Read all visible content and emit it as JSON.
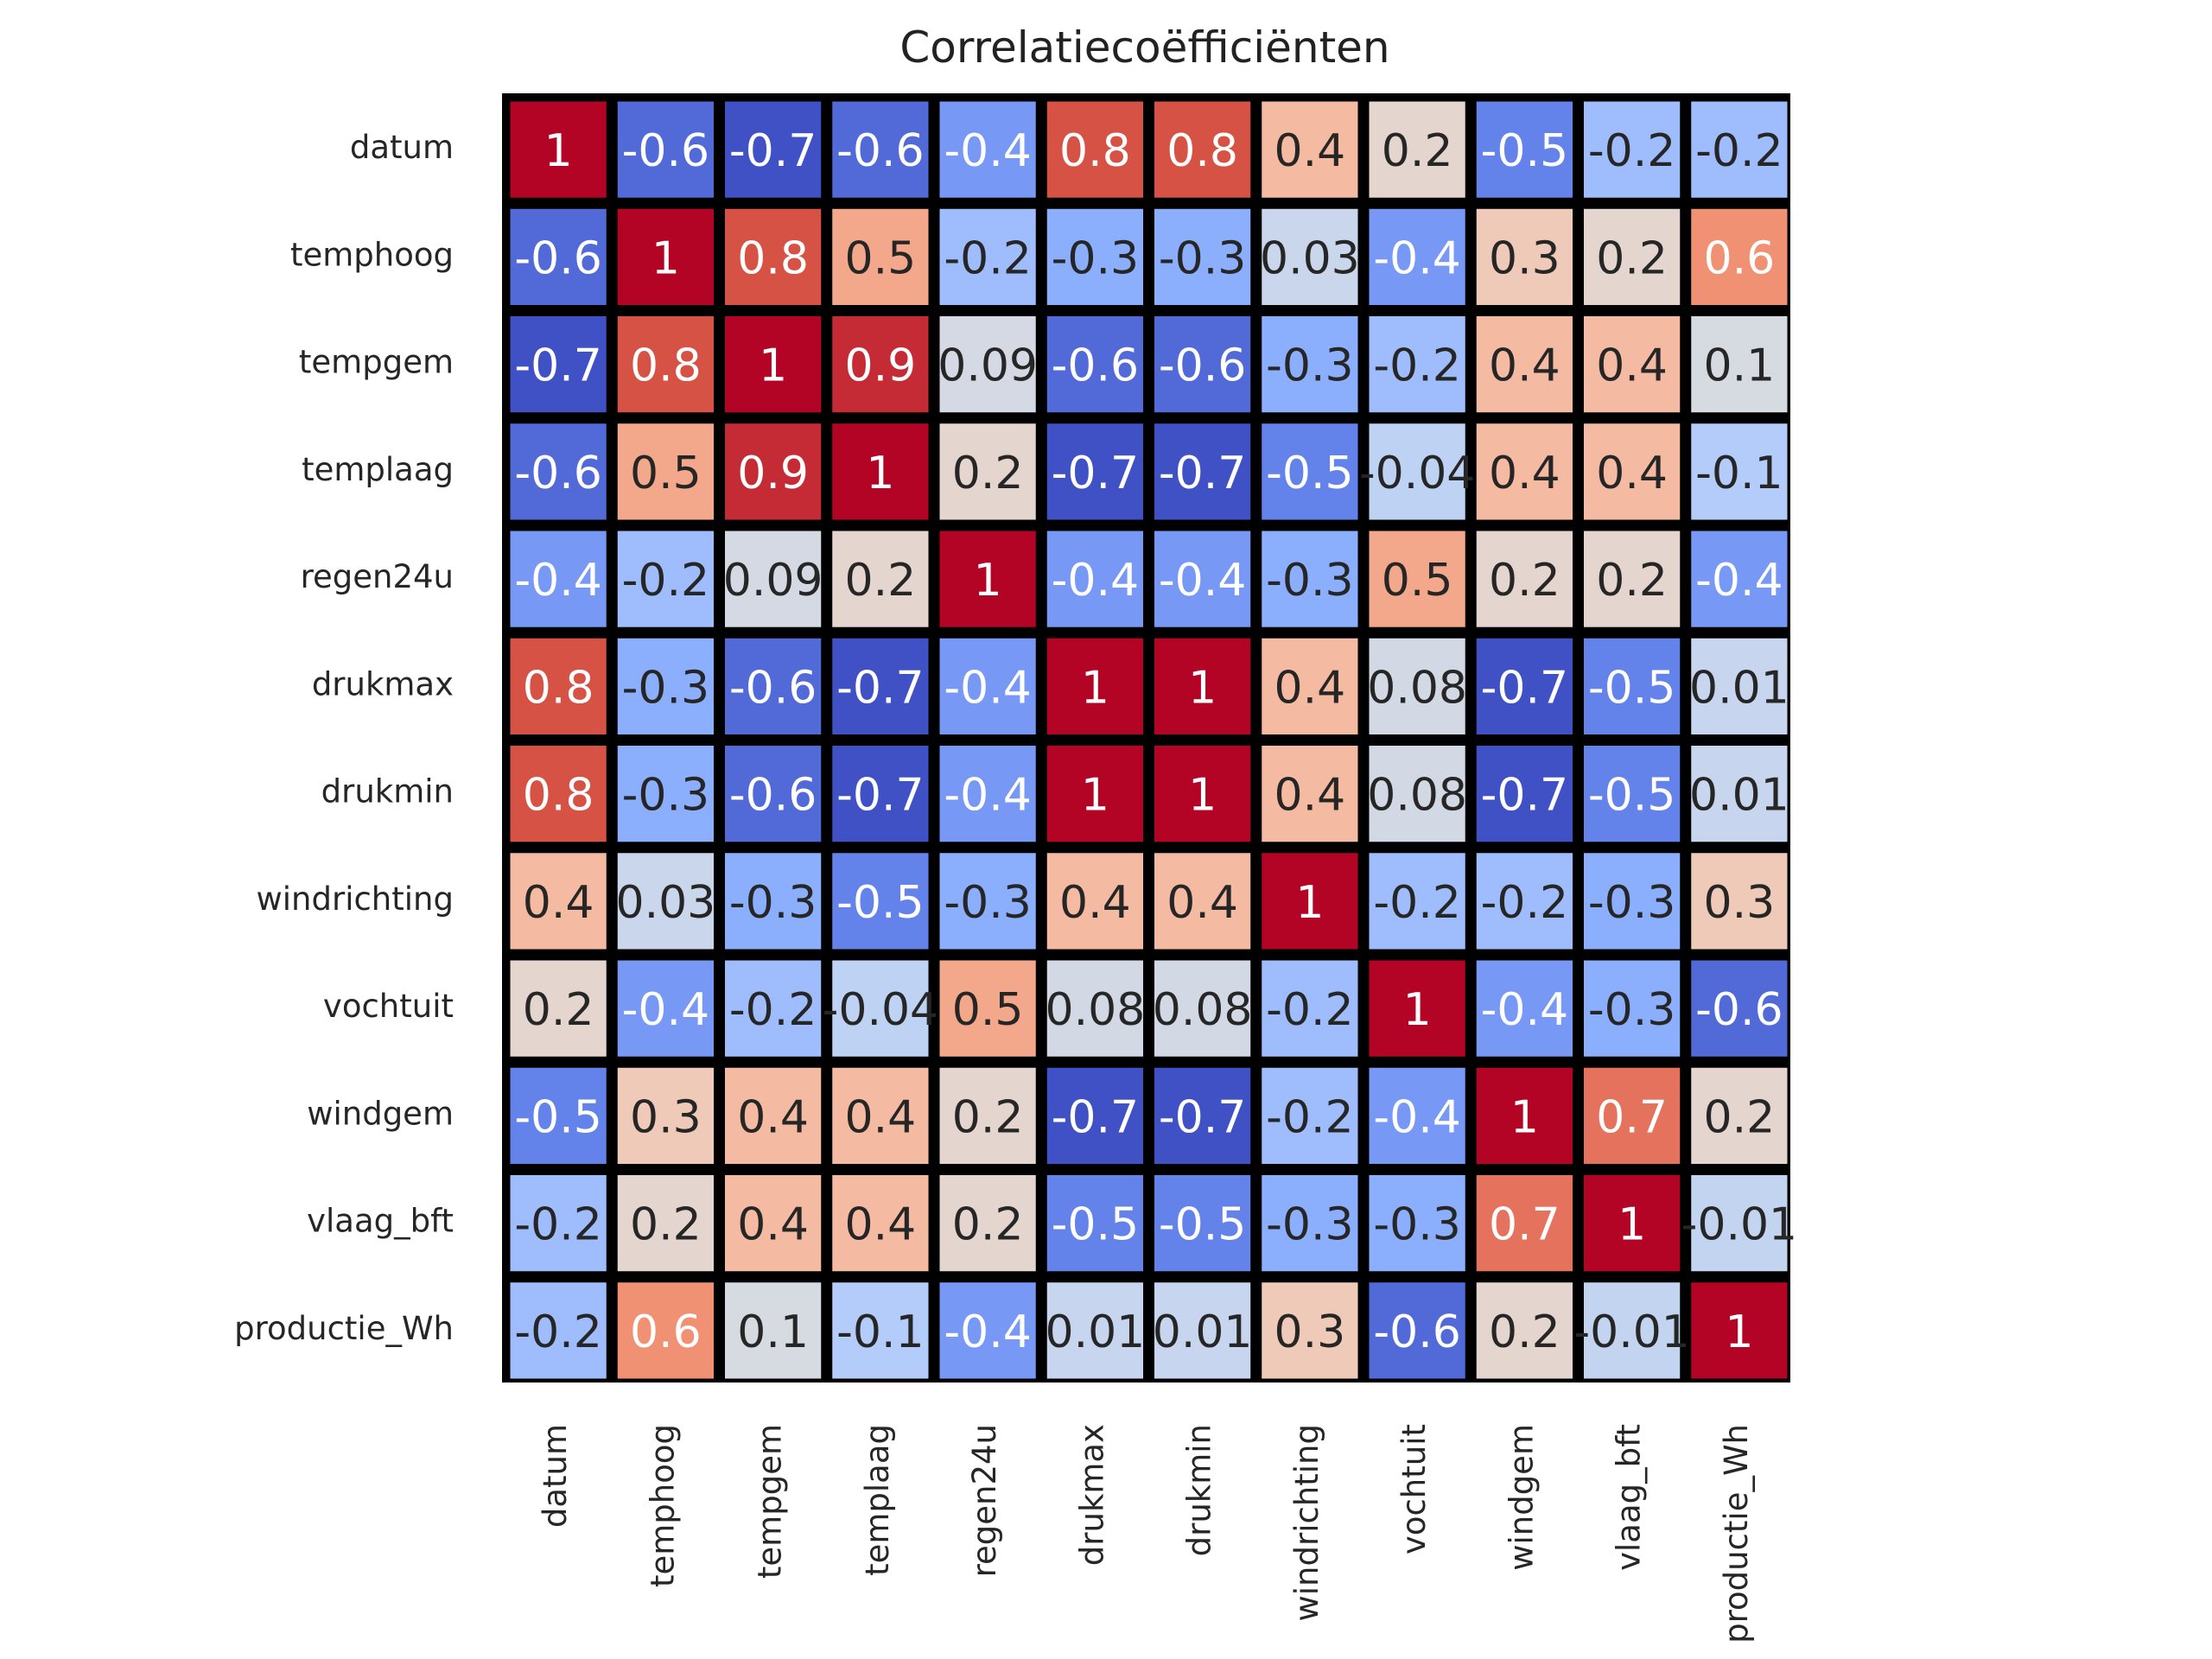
{
  "chart_data": {
    "type": "heatmap",
    "title": "Correlatiecoëfficiënten",
    "colormap": "coolwarm",
    "labels": [
      "datum",
      "temphoog",
      "tempgem",
      "templaag",
      "regen24u",
      "drukmax",
      "drukmin",
      "windrichting",
      "vochtuit",
      "windgem",
      "vlaag_bft",
      "productie_Wh"
    ],
    "values": [
      [
        1,
        -0.6,
        -0.7,
        -0.6,
        -0.4,
        0.8,
        0.8,
        0.4,
        0.2,
        -0.5,
        -0.2,
        -0.2
      ],
      [
        -0.6,
        1,
        0.8,
        0.5,
        -0.2,
        -0.3,
        -0.3,
        0.03,
        -0.4,
        0.3,
        0.2,
        0.6
      ],
      [
        -0.7,
        0.8,
        1,
        0.9,
        0.09,
        -0.6,
        -0.6,
        -0.3,
        -0.2,
        0.4,
        0.4,
        0.1
      ],
      [
        -0.6,
        0.5,
        0.9,
        1,
        0.2,
        -0.7,
        -0.7,
        -0.5,
        -0.04,
        0.4,
        0.4,
        -0.1
      ],
      [
        -0.4,
        -0.2,
        0.09,
        0.2,
        1,
        -0.4,
        -0.4,
        -0.3,
        0.5,
        0.2,
        0.2,
        -0.4
      ],
      [
        0.8,
        -0.3,
        -0.6,
        -0.7,
        -0.4,
        1,
        1,
        0.4,
        0.08,
        -0.7,
        -0.5,
        0.01
      ],
      [
        0.8,
        -0.3,
        -0.6,
        -0.7,
        -0.4,
        1,
        1,
        0.4,
        0.08,
        -0.7,
        -0.5,
        0.01
      ],
      [
        0.4,
        0.03,
        -0.3,
        -0.5,
        -0.3,
        0.4,
        0.4,
        1,
        -0.2,
        -0.2,
        -0.3,
        0.3
      ],
      [
        0.2,
        -0.4,
        -0.2,
        -0.04,
        0.5,
        0.08,
        0.08,
        -0.2,
        1,
        -0.4,
        -0.3,
        -0.6
      ],
      [
        -0.5,
        0.3,
        0.4,
        0.4,
        0.2,
        -0.7,
        -0.7,
        -0.2,
        -0.4,
        1,
        0.7,
        0.2
      ],
      [
        -0.2,
        0.2,
        0.4,
        0.4,
        0.2,
        -0.5,
        -0.5,
        -0.3,
        -0.3,
        0.7,
        1,
        -0.01
      ],
      [
        -0.2,
        0.6,
        0.1,
        -0.1,
        -0.4,
        0.01,
        0.01,
        0.3,
        -0.6,
        0.2,
        -0.01,
        1
      ]
    ],
    "vmin": -0.72,
    "vmax": 1
  }
}
